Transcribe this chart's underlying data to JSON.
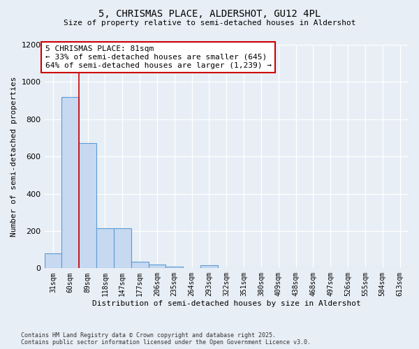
{
  "title1": "5, CHRISMAS PLACE, ALDERSHOT, GU12 4PL",
  "title2": "Size of property relative to semi-detached houses in Aldershot",
  "xlabel": "Distribution of semi-detached houses by size in Aldershot",
  "ylabel": "Number of semi-detached properties",
  "categories": [
    "31sqm",
    "60sqm",
    "89sqm",
    "118sqm",
    "147sqm",
    "177sqm",
    "206sqm",
    "235sqm",
    "264sqm",
    "293sqm",
    "322sqm",
    "351sqm",
    "380sqm",
    "409sqm",
    "438sqm",
    "468sqm",
    "497sqm",
    "526sqm",
    "555sqm",
    "584sqm",
    "613sqm"
  ],
  "values": [
    80,
    920,
    670,
    215,
    215,
    35,
    20,
    10,
    0,
    15,
    0,
    0,
    0,
    0,
    0,
    0,
    0,
    0,
    0,
    0,
    0
  ],
  "bar_color": "#c6d9f0",
  "bar_edge_color": "#5b9bd5",
  "vline_x": 1.5,
  "vline_color": "#cc0000",
  "annotation_title": "5 CHRISMAS PLACE: 81sqm",
  "annotation_line1": "← 33% of semi-detached houses are smaller (645)",
  "annotation_line2": "64% of semi-detached houses are larger (1,239) →",
  "annotation_box_color": "#ffffff",
  "annotation_box_edge": "#cc0000",
  "ylim": [
    0,
    1200
  ],
  "yticks": [
    0,
    200,
    400,
    600,
    800,
    1000,
    1200
  ],
  "footer1": "Contains HM Land Registry data © Crown copyright and database right 2025.",
  "footer2": "Contains public sector information licensed under the Open Government Licence v3.0.",
  "bg_color": "#e8eef5",
  "plot_bg_color": "#e8eef5"
}
